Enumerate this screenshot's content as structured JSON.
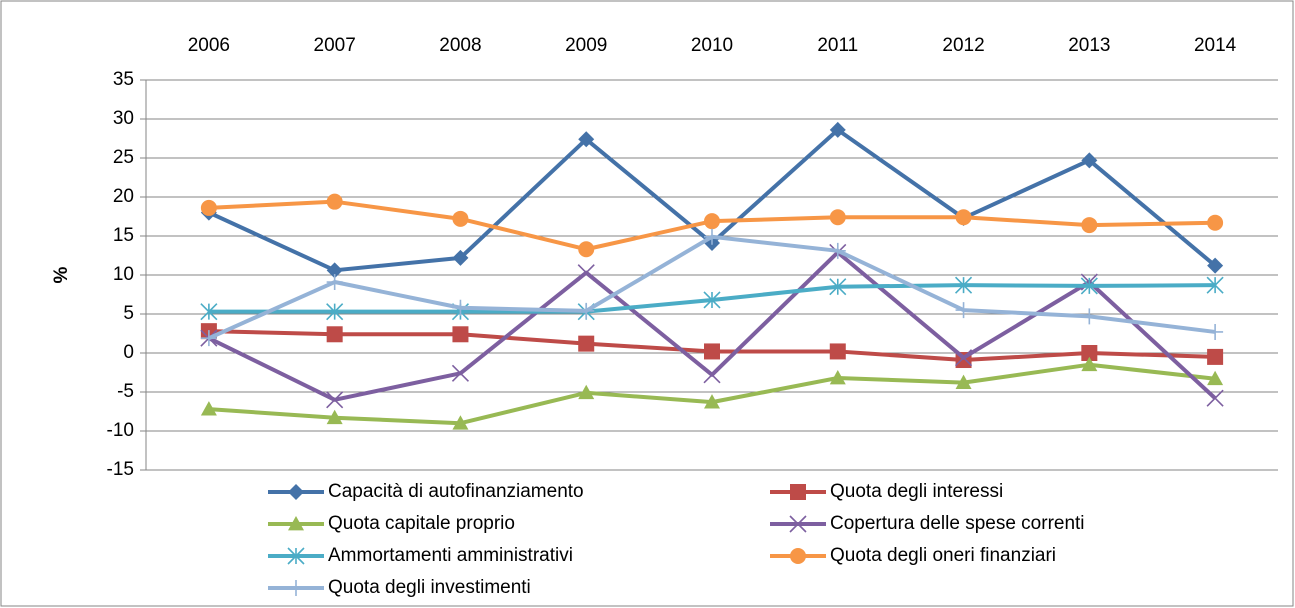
{
  "chart_data": {
    "type": "line",
    "y_label": "%",
    "categories": [
      "2006",
      "2007",
      "2008",
      "2009",
      "2010",
      "2011",
      "2012",
      "2013",
      "2014"
    ],
    "ylim": [
      -15,
      35
    ],
    "yticks": [
      -15,
      -10,
      -5,
      0,
      5,
      10,
      15,
      20,
      25,
      30,
      35
    ],
    "grid": true,
    "legend": "bottom",
    "series": [
      {
        "name": "Capacità di autofinanziamento",
        "color": "#4472a8",
        "marker": "diamond",
        "values": [
          18,
          10.6,
          12.2,
          27.4,
          14.1,
          28.6,
          17.3,
          24.7,
          11.2
        ]
      },
      {
        "name": "Quota degli interessi",
        "color": "#be4b48",
        "marker": "square",
        "values": [
          2.8,
          2.4,
          2.4,
          1.2,
          0.2,
          0.2,
          -0.9,
          0,
          -0.5
        ]
      },
      {
        "name": "Quota capitale proprio",
        "color": "#98b954",
        "marker": "triangle",
        "values": [
          -7.2,
          -8.3,
          -9.0,
          -5.1,
          -6.3,
          -3.2,
          -3.8,
          -1.5,
          -3.3
        ]
      },
      {
        "name": "Copertura delle spese correnti",
        "color": "#7d5fa0",
        "marker": "x",
        "values": [
          1.9,
          -6.0,
          -2.6,
          10.3,
          -2.8,
          12.9,
          -0.6,
          9.1,
          -5.8
        ]
      },
      {
        "name": "Ammortamenti amministrativi",
        "color": "#4bacc6",
        "marker": "star",
        "values": [
          5.3,
          5.3,
          5.3,
          5.3,
          6.8,
          8.5,
          8.7,
          8.6,
          8.7
        ]
      },
      {
        "name": "Quota degli oneri finanziari",
        "color": "#f79646",
        "marker": "circle",
        "values": [
          18.6,
          19.4,
          17.2,
          13.3,
          16.9,
          17.4,
          17.4,
          16.4,
          16.7
        ]
      },
      {
        "name": "Quota degli investimenti",
        "color": "#95b3d7",
        "marker": "plus",
        "values": [
          1.9,
          9.1,
          5.8,
          5.4,
          14.9,
          13.1,
          5.5,
          4.7,
          2.7
        ]
      }
    ]
  }
}
